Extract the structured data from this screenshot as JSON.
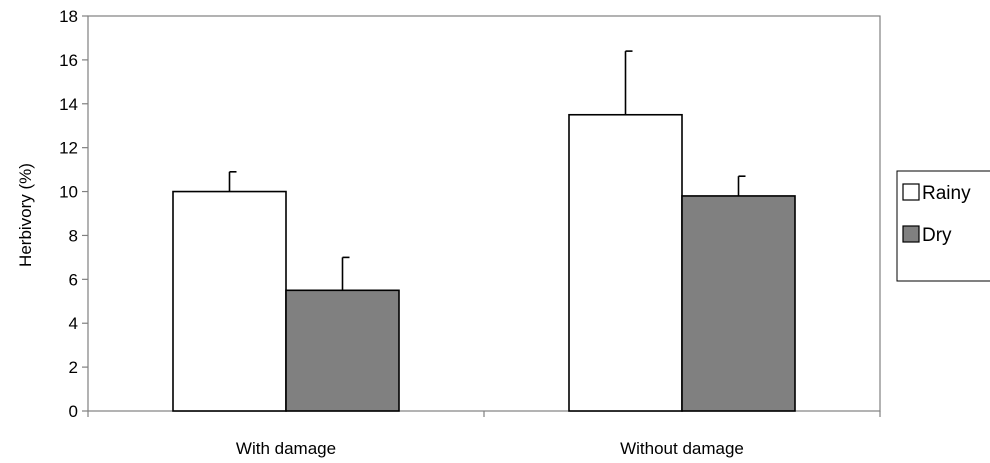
{
  "chart_data": {
    "type": "bar",
    "categories": [
      "With damage",
      "Without damage"
    ],
    "series": [
      {
        "name": "Rainy",
        "values": [
          10.0,
          13.5
        ],
        "errors": [
          0.9,
          2.9
        ],
        "color": "#ffffff"
      },
      {
        "name": "Dry",
        "values": [
          5.5,
          9.8
        ],
        "errors": [
          1.5,
          0.9
        ],
        "color": "#808080"
      }
    ],
    "title": "",
    "xlabel": "",
    "ylabel": "Herbivory (%)",
    "ylim": [
      0,
      18
    ],
    "yticks": [
      0,
      2,
      4,
      6,
      8,
      10,
      12,
      14,
      16,
      18
    ],
    "grid": false,
    "legend_position": "right"
  },
  "colors": {
    "axis": "#808080",
    "bar_edge": "#000000"
  }
}
